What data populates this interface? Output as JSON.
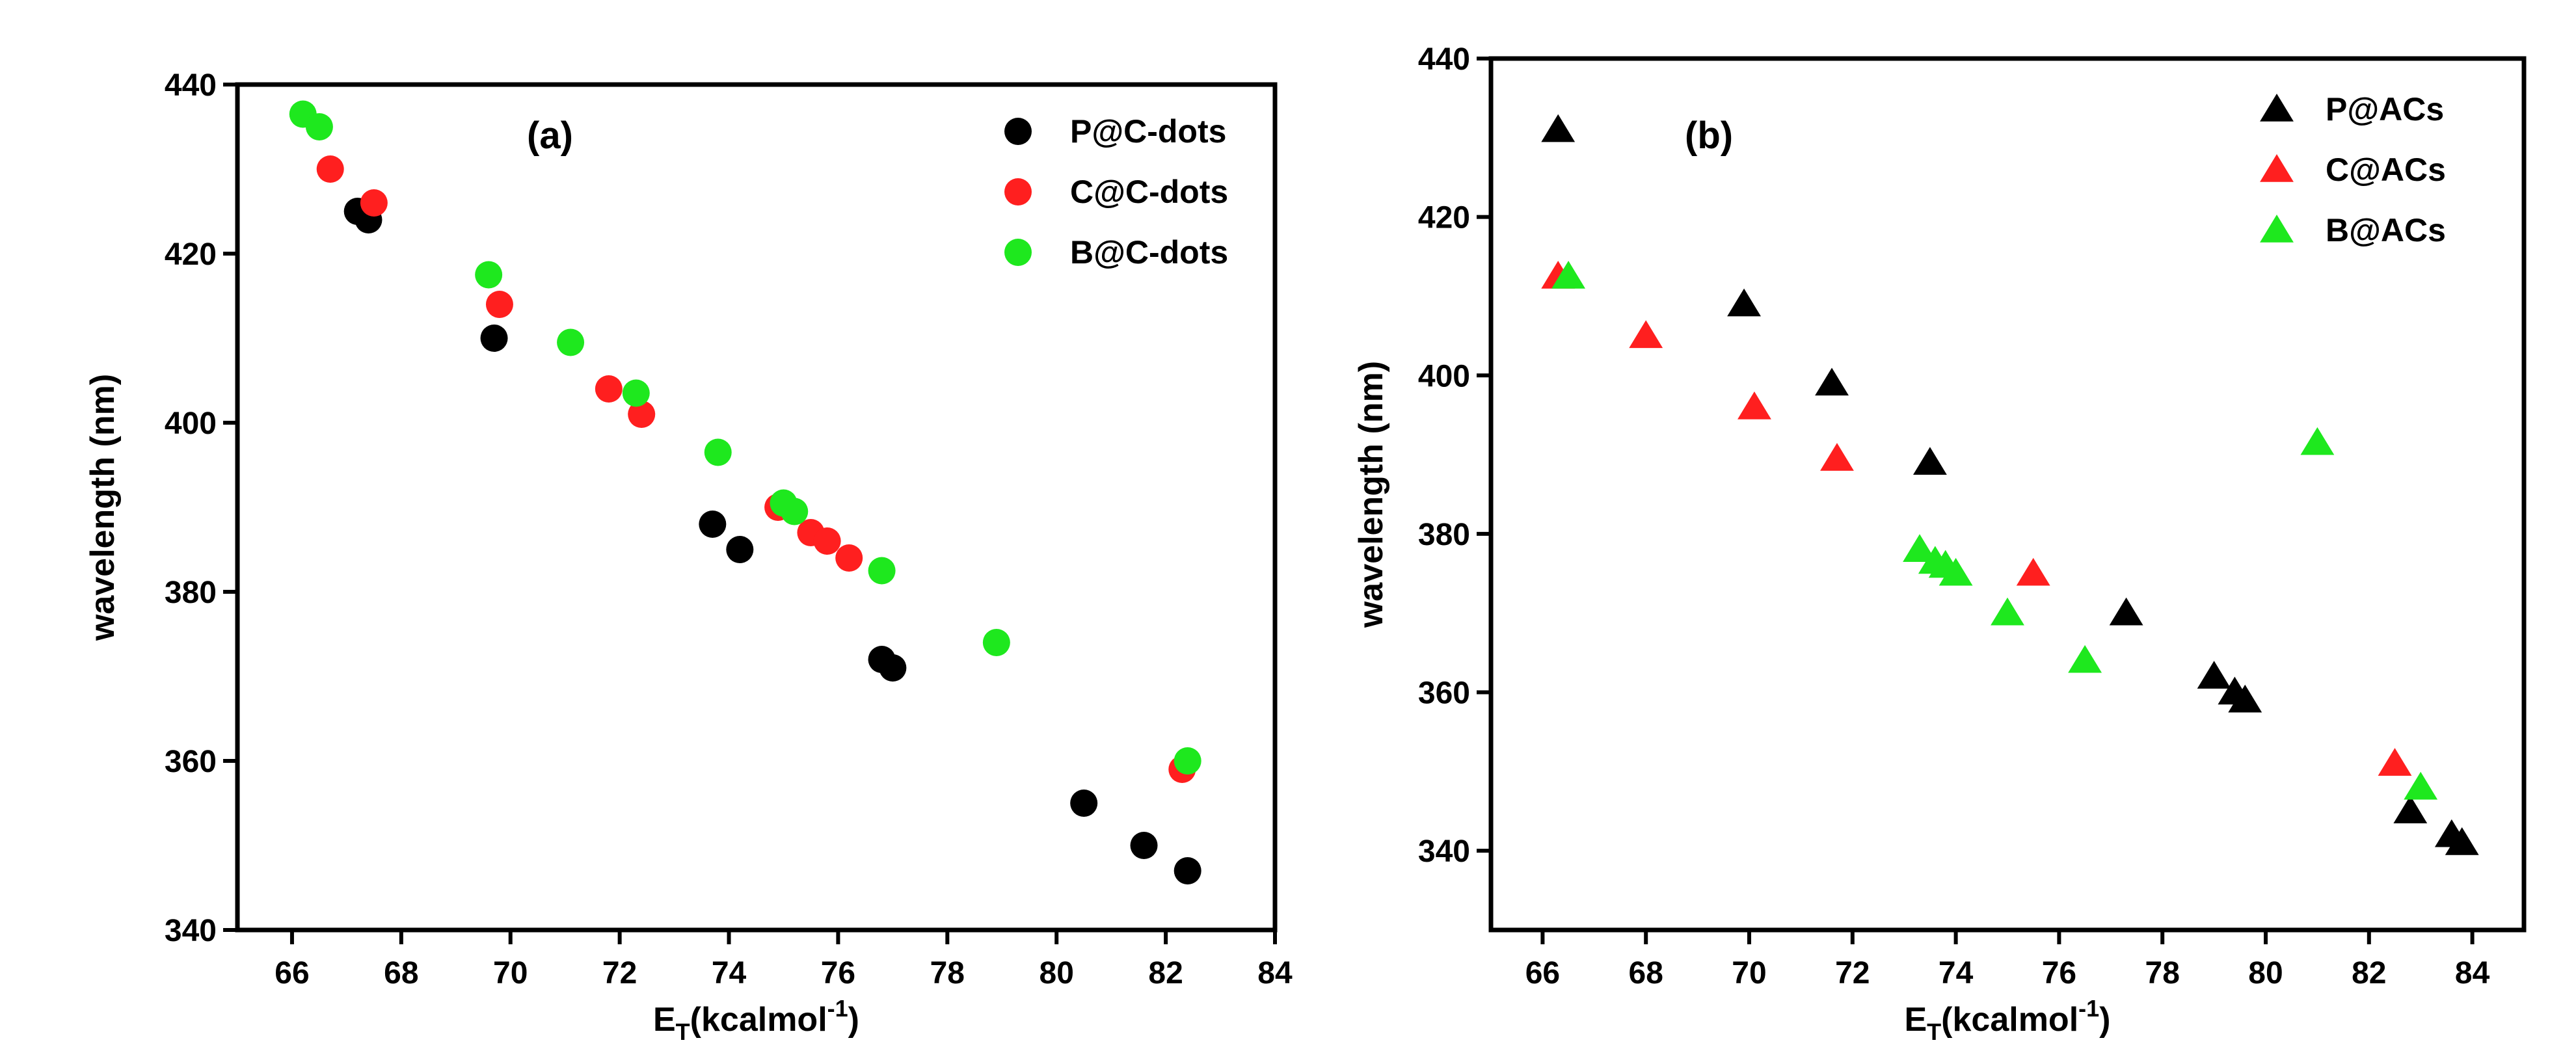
{
  "chart_data": [
    {
      "type": "scatter",
      "panel_label": "(a)",
      "xlabel_main": "E",
      "xlabel_sub": "T",
      "xlabel_unit": "(kcalmol",
      "xlabel_sup": "-1",
      "xlabel_close": ")",
      "ylabel": "wavelength (nm)",
      "xlim": [
        65,
        84
      ],
      "ylim": [
        340,
        440
      ],
      "xticks": [
        66,
        68,
        70,
        72,
        74,
        76,
        78,
        80,
        82,
        84
      ],
      "yticks": [
        340,
        360,
        380,
        400,
        420,
        440
      ],
      "xtick_labels": [
        "66",
        "68",
        "70",
        "72",
        "74",
        "76",
        "78",
        "80",
        "82",
        "84"
      ],
      "ytick_labels": [
        "340",
        "360",
        "380",
        "400",
        "420",
        "440"
      ],
      "grid": false,
      "legend_position": "top-right",
      "marker": "circle",
      "series": [
        {
          "name": "P@C-dots",
          "color": "#000000",
          "points": [
            [
              67.2,
              425
            ],
            [
              67.4,
              424
            ],
            [
              69.7,
              410
            ],
            [
              73.7,
              388
            ],
            [
              74.2,
              385
            ],
            [
              76.8,
              372
            ],
            [
              77.0,
              371
            ],
            [
              80.5,
              355
            ],
            [
              81.6,
              350
            ],
            [
              82.4,
              347
            ]
          ]
        },
        {
          "name": "C@C-dots",
          "color": "#ff1f1f",
          "points": [
            [
              66.7,
              430
            ],
            [
              67.5,
              426
            ],
            [
              69.8,
              414
            ],
            [
              71.8,
              404
            ],
            [
              72.4,
              401
            ],
            [
              74.9,
              390
            ],
            [
              75.5,
              387
            ],
            [
              75.8,
              386
            ],
            [
              76.2,
              384
            ],
            [
              82.3,
              359
            ]
          ]
        },
        {
          "name": "B@C-dots",
          "color": "#1ee81e",
          "points": [
            [
              66.2,
              436.5
            ],
            [
              66.5,
              435
            ],
            [
              69.6,
              417.5
            ],
            [
              71.1,
              409.5
            ],
            [
              72.3,
              403.5
            ],
            [
              73.8,
              396.5
            ],
            [
              75.0,
              390.5
            ],
            [
              75.2,
              389.5
            ],
            [
              76.8,
              382.5
            ],
            [
              78.9,
              374
            ],
            [
              82.4,
              360
            ]
          ]
        }
      ]
    },
    {
      "type": "scatter",
      "panel_label": "(b)",
      "xlabel_main": "E",
      "xlabel_sub": "T",
      "xlabel_unit": "(kcalmol",
      "xlabel_sup": "-1",
      "xlabel_close": ")",
      "ylabel": "wavelength (nm)",
      "xlim": [
        65,
        85
      ],
      "ylim": [
        330,
        440
      ],
      "xticks": [
        66,
        68,
        70,
        72,
        74,
        76,
        78,
        80,
        82,
        84
      ],
      "yticks": [
        340,
        360,
        380,
        400,
        420,
        440
      ],
      "xtick_labels": [
        "66",
        "68",
        "70",
        "72",
        "74",
        "76",
        "78",
        "80",
        "82",
        "84"
      ],
      "ytick_labels": [
        "340",
        "360",
        "380",
        "400",
        "420",
        "440"
      ],
      "grid": false,
      "legend_position": "top-right",
      "marker": "triangle",
      "series": [
        {
          "name": "P@ACs",
          "color": "#000000",
          "points": [
            [
              66.3,
              431
            ],
            [
              69.9,
              409
            ],
            [
              71.6,
              399
            ],
            [
              73.5,
              389
            ],
            [
              77.3,
              370
            ],
            [
              79.0,
              362
            ],
            [
              79.4,
              360
            ],
            [
              79.6,
              359
            ],
            [
              82.8,
              345
            ],
            [
              83.6,
              342
            ],
            [
              83.8,
              341
            ]
          ]
        },
        {
          "name": "C@ACs",
          "color": "#ff1f1f",
          "points": [
            [
              66.3,
              412.5
            ],
            [
              68.0,
              405
            ],
            [
              70.1,
              396
            ],
            [
              71.7,
              389.5
            ],
            [
              75.5,
              375
            ],
            [
              82.5,
              351
            ]
          ]
        },
        {
          "name": "B@ACs",
          "color": "#1ee81e",
          "points": [
            [
              66.5,
              412.5
            ],
            [
              73.3,
              378
            ],
            [
              73.6,
              376.5
            ],
            [
              73.8,
              376
            ],
            [
              74.0,
              375
            ],
            [
              75.0,
              370
            ],
            [
              76.5,
              364
            ],
            [
              81.0,
              391.5
            ],
            [
              83.0,
              348
            ]
          ]
        }
      ]
    }
  ]
}
